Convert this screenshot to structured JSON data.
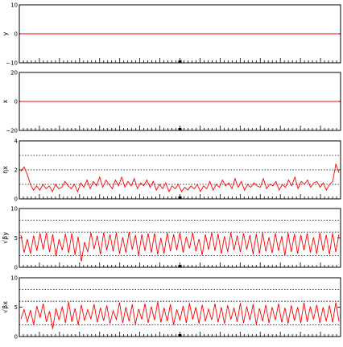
{
  "chart_data": [
    {
      "type": "line",
      "ylabel": "y",
      "ylim": [
        -10,
        10
      ],
      "yticks": [
        "10",
        "0",
        "−10"
      ],
      "ytick_values": [
        10,
        0,
        -10
      ],
      "ref_lines": [
        0
      ],
      "series": [
        {
          "values": [
            0,
            0,
            0,
            0,
            0,
            0,
            0,
            0,
            0,
            0,
            0,
            0,
            0,
            0,
            0,
            0,
            0,
            0,
            0,
            0,
            0,
            0,
            0,
            0,
            0,
            0,
            0,
            0,
            0,
            0,
            0,
            0,
            0,
            0,
            0,
            0,
            0,
            0,
            0,
            0,
            0,
            0,
            0,
            0,
            0,
            0,
            0,
            0,
            0,
            0,
            0,
            0,
            0,
            0,
            0,
            0,
            0,
            0,
            0,
            0,
            0,
            0,
            0,
            0,
            0,
            0,
            0,
            0,
            0,
            0,
            0,
            0,
            0,
            0,
            0,
            0,
            0,
            0,
            0,
            0,
            0,
            0,
            0,
            0,
            0,
            0,
            0,
            0,
            0,
            0,
            0,
            0,
            0,
            0,
            0,
            0,
            0,
            0,
            0,
            0
          ],
          "color": "#0000ff"
        },
        {
          "values": [
            0,
            0,
            0,
            0,
            0,
            0,
            0,
            0,
            0,
            0,
            0,
            0,
            0,
            0,
            0,
            0,
            0,
            0,
            0,
            0,
            0,
            0,
            0,
            0,
            0,
            0,
            0,
            0,
            0,
            0,
            0,
            0,
            0,
            0,
            0,
            0,
            0,
            0,
            0,
            0,
            0,
            0,
            0,
            0,
            0,
            0,
            0,
            0,
            0,
            0,
            0,
            0,
            0,
            0,
            0,
            0,
            0,
            0,
            0,
            0,
            0,
            0,
            0,
            0,
            0,
            0,
            0,
            0,
            0,
            0,
            0,
            0,
            0,
            0,
            0,
            0,
            0,
            0,
            0,
            0,
            0,
            0,
            0,
            0,
            0,
            0,
            0,
            0,
            0,
            0,
            0,
            0,
            0,
            0,
            0,
            0,
            0,
            0,
            0,
            0
          ],
          "color": "#ff0000"
        }
      ]
    },
    {
      "type": "line",
      "ylabel": "x",
      "ylim": [
        -20,
        20
      ],
      "yticks": [
        "20",
        "0",
        "−20"
      ],
      "ytick_values": [
        20,
        0,
        -20
      ],
      "ref_lines": [
        0
      ],
      "series": [
        {
          "values": [
            0,
            0,
            0,
            0,
            0,
            0,
            0,
            0,
            0,
            0,
            0,
            0,
            0,
            0,
            0,
            0,
            0,
            0,
            0,
            0,
            0,
            0,
            0,
            0,
            0,
            0,
            0,
            0,
            0,
            0,
            0,
            0,
            0,
            0,
            0,
            0,
            0,
            0,
            0,
            0,
            0,
            0,
            0,
            0,
            0,
            0,
            0,
            0,
            0,
            0,
            0,
            0,
            0,
            0,
            0,
            0,
            0,
            0,
            0,
            0,
            0,
            0,
            0,
            0,
            0,
            0,
            0,
            0,
            0,
            0,
            0,
            0,
            0,
            0,
            0,
            0,
            0,
            0,
            0,
            0,
            0,
            0,
            0,
            0,
            0,
            0,
            0,
            0,
            0,
            0,
            0,
            0,
            0,
            0,
            0,
            0,
            0,
            0,
            0,
            0
          ],
          "color": "#0000ff"
        },
        {
          "values": [
            0,
            0,
            0,
            0,
            0,
            0,
            0,
            0,
            0,
            0,
            0,
            0,
            0,
            0,
            0,
            0,
            0,
            0,
            0,
            0,
            0,
            0,
            0,
            0,
            0,
            0,
            0,
            0,
            0,
            0,
            0,
            0,
            0,
            0,
            0,
            0,
            0,
            0,
            0,
            0,
            0,
            0,
            0,
            0,
            0,
            0,
            0,
            0,
            0,
            0,
            0,
            0,
            0,
            0,
            0,
            0,
            0,
            0,
            0,
            0,
            0,
            0,
            0,
            0,
            0,
            0,
            0,
            0,
            0,
            0,
            0,
            0,
            0,
            0,
            0,
            0,
            0,
            0,
            0,
            0,
            0,
            0,
            0,
            0,
            0,
            0,
            0,
            0,
            0,
            0,
            0,
            0,
            0,
            0,
            0,
            0,
            0,
            0,
            0,
            0,
            0,
            0,
            0
          ],
          "color": "#ff0000"
        }
      ]
    },
    {
      "type": "line",
      "ylabel": "ηx",
      "ylim": [
        0,
        4
      ],
      "yticks": [
        "4",
        "2",
        "0"
      ],
      "ytick_values": [
        4,
        2,
        0
      ],
      "ref_lines": [
        1,
        2,
        3
      ],
      "series": [
        {
          "values": [
            1.9,
            2.2,
            1.7,
            1.0,
            0.6,
            0.9,
            0.6,
            1.0,
            0.7,
            0.9,
            0.5,
            1.0,
            0.7,
            0.8,
            1.2,
            0.9,
            0.7,
            1.0,
            0.5,
            1.1,
            0.8,
            1.3,
            0.7,
            1.2,
            0.9,
            1.5,
            0.8,
            1.3,
            1.0,
            0.7,
            1.3,
            0.9,
            1.5,
            0.8,
            1.2,
            0.9,
            1.4,
            0.7,
            1.1,
            0.9,
            1.3,
            0.8,
            1.2,
            0.6,
            1.0,
            0.7,
            1.1,
            0.5,
            0.9,
            0.7,
            1.0,
            0.5,
            0.8,
            0.6,
            0.9,
            0.7,
            1.0,
            0.5,
            0.9,
            0.7,
            1.2,
            0.6,
            1.0,
            0.8,
            1.3,
            0.9,
            1.1,
            0.7,
            1.4,
            0.8,
            1.2,
            0.6,
            1.0,
            0.8,
            1.1,
            0.9,
            0.8,
            1.4,
            0.7,
            1.0,
            0.9,
            1.2,
            0.6,
            1.0,
            0.8,
            1.3,
            0.9,
            1.5,
            0.7,
            1.2,
            1.0,
            1.3,
            0.8,
            1.1,
            1.2,
            0.8,
            1.1,
            0.6,
            1.0,
            1.2,
            2.4,
            1.8
          ],
          "color": "#ff0000"
        }
      ]
    },
    {
      "type": "line",
      "ylabel": "√βy",
      "ylim": [
        0,
        10
      ],
      "yticks": [
        "10",
        "5",
        "0"
      ],
      "ytick_values": [
        10,
        5,
        0
      ],
      "ref_lines": [
        2,
        6,
        8
      ],
      "series": [
        {
          "values": [
            5.5,
            2.5,
            4.8,
            2.3,
            5.4,
            2.8,
            5.8,
            3.0,
            5.9,
            2.6,
            5.6,
            1.9,
            4.8,
            2.9,
            5.7,
            2.4,
            5.8,
            2.1,
            5.2,
            1.0,
            4.3,
            2.6,
            5.9,
            3.1,
            5.4,
            2.2,
            5.9,
            2.9,
            5.6,
            2.7,
            5.9,
            2.3,
            5.1,
            2.5,
            6.0,
            3.0,
            5.5,
            2.0,
            5.6,
            2.8,
            5.8,
            2.5,
            5.8,
            2.2,
            5.0,
            2.3,
            5.9,
            2.7,
            5.6,
            2.9,
            5.9,
            2.5,
            5.2,
            3.2,
            5.9,
            2.7,
            4.8,
            2.1,
            5.6,
            3.0,
            5.9,
            2.8,
            5.7,
            2.3,
            5.3,
            2.6,
            5.9,
            2.9,
            5.4,
            2.6,
            5.8,
            3.0,
            5.5,
            2.2,
            5.7,
            2.3,
            5.9,
            2.7,
            5.1,
            2.4,
            5.8,
            2.8,
            5.3,
            2.0,
            5.9,
            2.6,
            5.7,
            2.3,
            5.5,
            2.9,
            5.8,
            2.5,
            5.1,
            2.3,
            5.9,
            2.8,
            5.5,
            2.2,
            5.8,
            2.6,
            5.6
          ],
          "color": "#ff0000"
        }
      ]
    },
    {
      "type": "line",
      "ylabel": "√βx",
      "ylim": [
        0,
        10
      ],
      "yticks": [
        "10",
        "5",
        "0"
      ],
      "ytick_values": [
        10,
        5,
        0
      ],
      "ref_lines": [
        2,
        6,
        8
      ],
      "series": [
        {
          "values": [
            3.0,
            4.6,
            2.5,
            4.5,
            2.0,
            5.2,
            3.2,
            5.6,
            2.5,
            4.3,
            1.3,
            4.8,
            2.8,
            5.1,
            2.3,
            5.9,
            2.5,
            4.8,
            2.0,
            5.4,
            2.7,
            4.6,
            3.0,
            5.5,
            2.4,
            4.9,
            2.7,
            5.3,
            2.2,
            4.4,
            2.9,
            5.8,
            2.3,
            5.0,
            2.6,
            5.5,
            2.1,
            4.7,
            2.9,
            5.6,
            2.3,
            5.1,
            2.8,
            5.9,
            2.4,
            4.9,
            2.6,
            5.5,
            2.0,
            4.6,
            2.8,
            5.2,
            2.3,
            5.7,
            2.9,
            5.0,
            2.2,
            5.4,
            2.6,
            4.7,
            2.8,
            5.6,
            2.4,
            5.0,
            2.2,
            5.3,
            2.9,
            4.9,
            2.5,
            5.7,
            2.3,
            5.1,
            2.8,
            5.5,
            2.1,
            4.8,
            2.6,
            5.4,
            2.3,
            5.0,
            2.8,
            5.6,
            2.4,
            4.9,
            2.2,
            5.3,
            2.7,
            5.0,
            2.3,
            5.8,
            2.5,
            5.1,
            2.9,
            5.4,
            2.3,
            5.0,
            2.6,
            5.3,
            2.4,
            5.8,
            2.6
          ],
          "color": "#ff0000"
        }
      ]
    }
  ]
}
